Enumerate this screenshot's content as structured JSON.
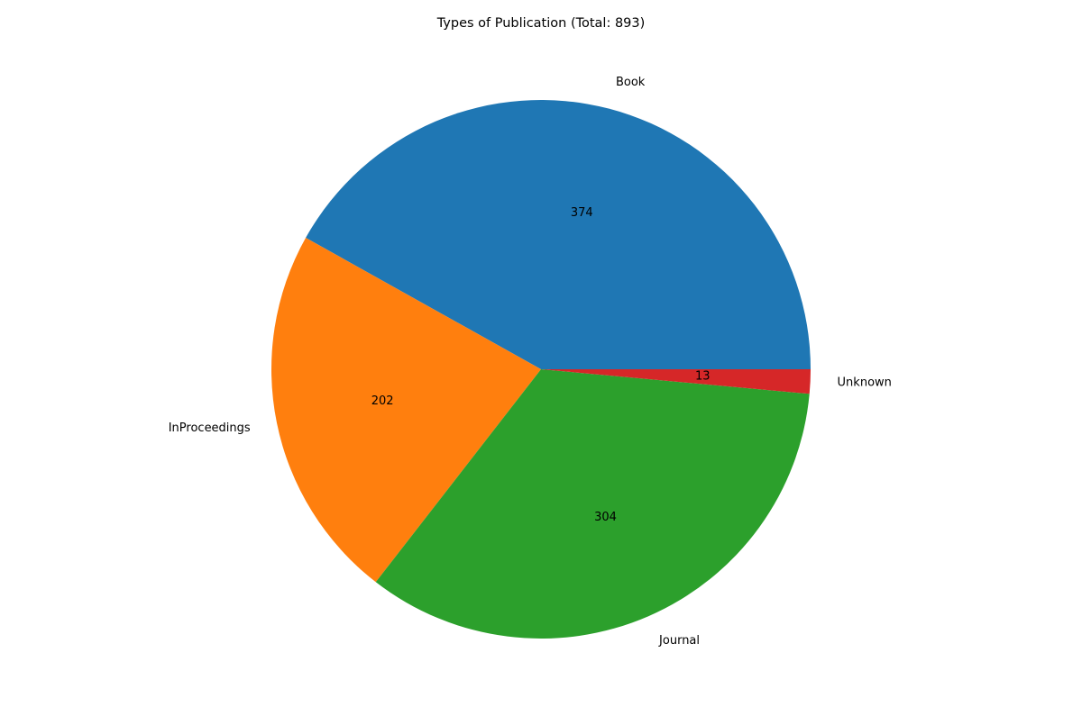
{
  "chart_data": {
    "type": "pie",
    "title": "Types of Publication (Total: 893)",
    "categories": [
      "Book",
      "InProceedings",
      "Journal",
      "Unknown"
    ],
    "values": [
      374,
      202,
      304,
      13
    ],
    "colors": [
      "#1f77b4",
      "#ff7f0e",
      "#2ca02c",
      "#d62728"
    ],
    "start_angle_deg": 0,
    "direction": "counterclockwise",
    "legend": "none"
  }
}
